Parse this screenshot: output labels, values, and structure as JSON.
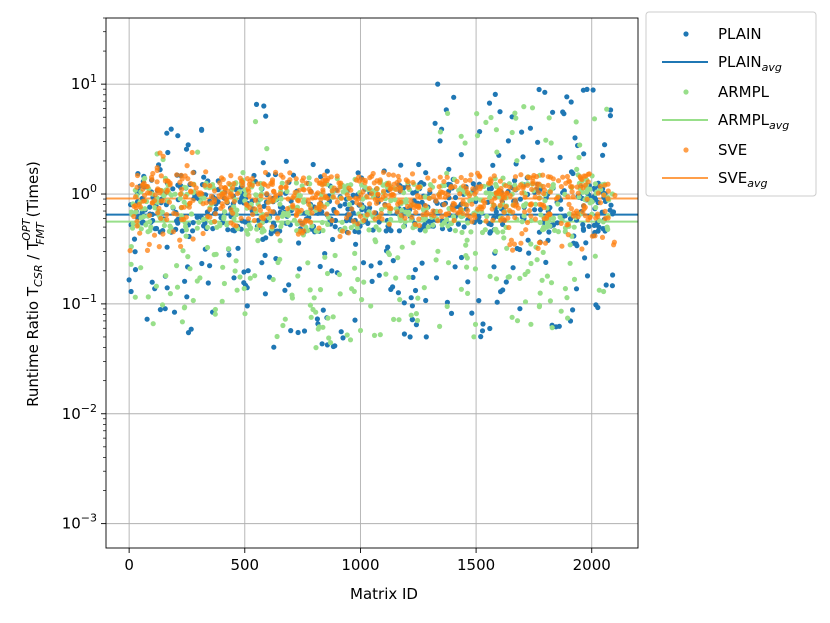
{
  "chart_data": {
    "type": "scatter",
    "xlabel": "Matrix ID",
    "ylabel": {
      "prefix": "Runtime Ratio T",
      "sub1": "CSR",
      "mid": " / T",
      "sup2": "OPT",
      "sub2": "FMT",
      "suffix": " (Times)"
    },
    "xlim": [
      -100,
      2200
    ],
    "ylim": [
      0.0006,
      40
    ],
    "y_scale": "log",
    "x_ticks": [
      0,
      500,
      1000,
      1500,
      2000
    ],
    "x_tick_labels": [
      "0",
      "500",
      "1000",
      "1500",
      "2000"
    ],
    "y_ticks": [
      0.001,
      0.01,
      0.1,
      1,
      10
    ],
    "y_tick_labels": [
      {
        "base": "10",
        "exp": "−3"
      },
      {
        "base": "10",
        "exp": "−2"
      },
      {
        "base": "10",
        "exp": "−1"
      },
      {
        "base": "10",
        "exp": "0"
      },
      {
        "base": "10",
        "exp": "1"
      }
    ],
    "grid": true,
    "legend_position": "outside-top-right",
    "x_count": 2100,
    "series": [
      {
        "name": "PLAIN",
        "avg_name": {
          "base": "PLAIN",
          "sub": "avg"
        },
        "color": "#1f77b4",
        "avg": 0.65
      },
      {
        "name": "ARMPL",
        "avg_name": {
          "base": "ARMPL",
          "sub": "avg"
        },
        "color": "#98df8a",
        "avg": 0.56
      },
      {
        "name": "SVE",
        "avg_name": {
          "base": "SVE",
          "sub": "avg"
        },
        "color": "#ff7f0e",
        "avg": 0.91
      }
    ],
    "clusters": [
      {
        "x": [
          0,
          110
        ],
        "plain": [
          0.06,
          2.0
        ],
        "armpl": [
          0.06,
          1.5
        ],
        "sve": [
          0.3,
          1.6
        ]
      },
      {
        "x": [
          110,
          340
        ],
        "plain": [
          0.05,
          4.0
        ],
        "armpl": [
          0.05,
          3.0
        ],
        "sve": [
          0.3,
          2.5
        ]
      },
      {
        "x": [
          340,
          520
        ],
        "plain": [
          0.08,
          2.0
        ],
        "armpl": [
          0.08,
          1.6
        ],
        "sve": [
          0.5,
          1.5
        ]
      },
      {
        "x": [
          520,
          620
        ],
        "plain": [
          0.1,
          10.5
        ],
        "armpl": [
          0.1,
          7.0
        ],
        "sve": [
          0.5,
          1.5
        ]
      },
      {
        "x": [
          620,
          1000
        ],
        "plain": [
          0.04,
          2.0
        ],
        "armpl": [
          0.04,
          1.5
        ],
        "sve": [
          0.4,
          1.4
        ]
      },
      {
        "x": [
          1000,
          1320
        ],
        "plain": [
          0.05,
          2.0
        ],
        "armpl": [
          0.05,
          1.5
        ],
        "sve": [
          0.5,
          1.5
        ]
      },
      {
        "x": [
          1320,
          1620
        ],
        "plain": [
          0.05,
          10.0
        ],
        "armpl": [
          0.05,
          6.0
        ],
        "sve": [
          0.5,
          1.5
        ]
      },
      {
        "x": [
          1620,
          2100
        ],
        "plain": [
          0.06,
          9.5
        ],
        "armpl": [
          0.06,
          6.5
        ],
        "sve": [
          0.3,
          1.6
        ]
      }
    ]
  }
}
